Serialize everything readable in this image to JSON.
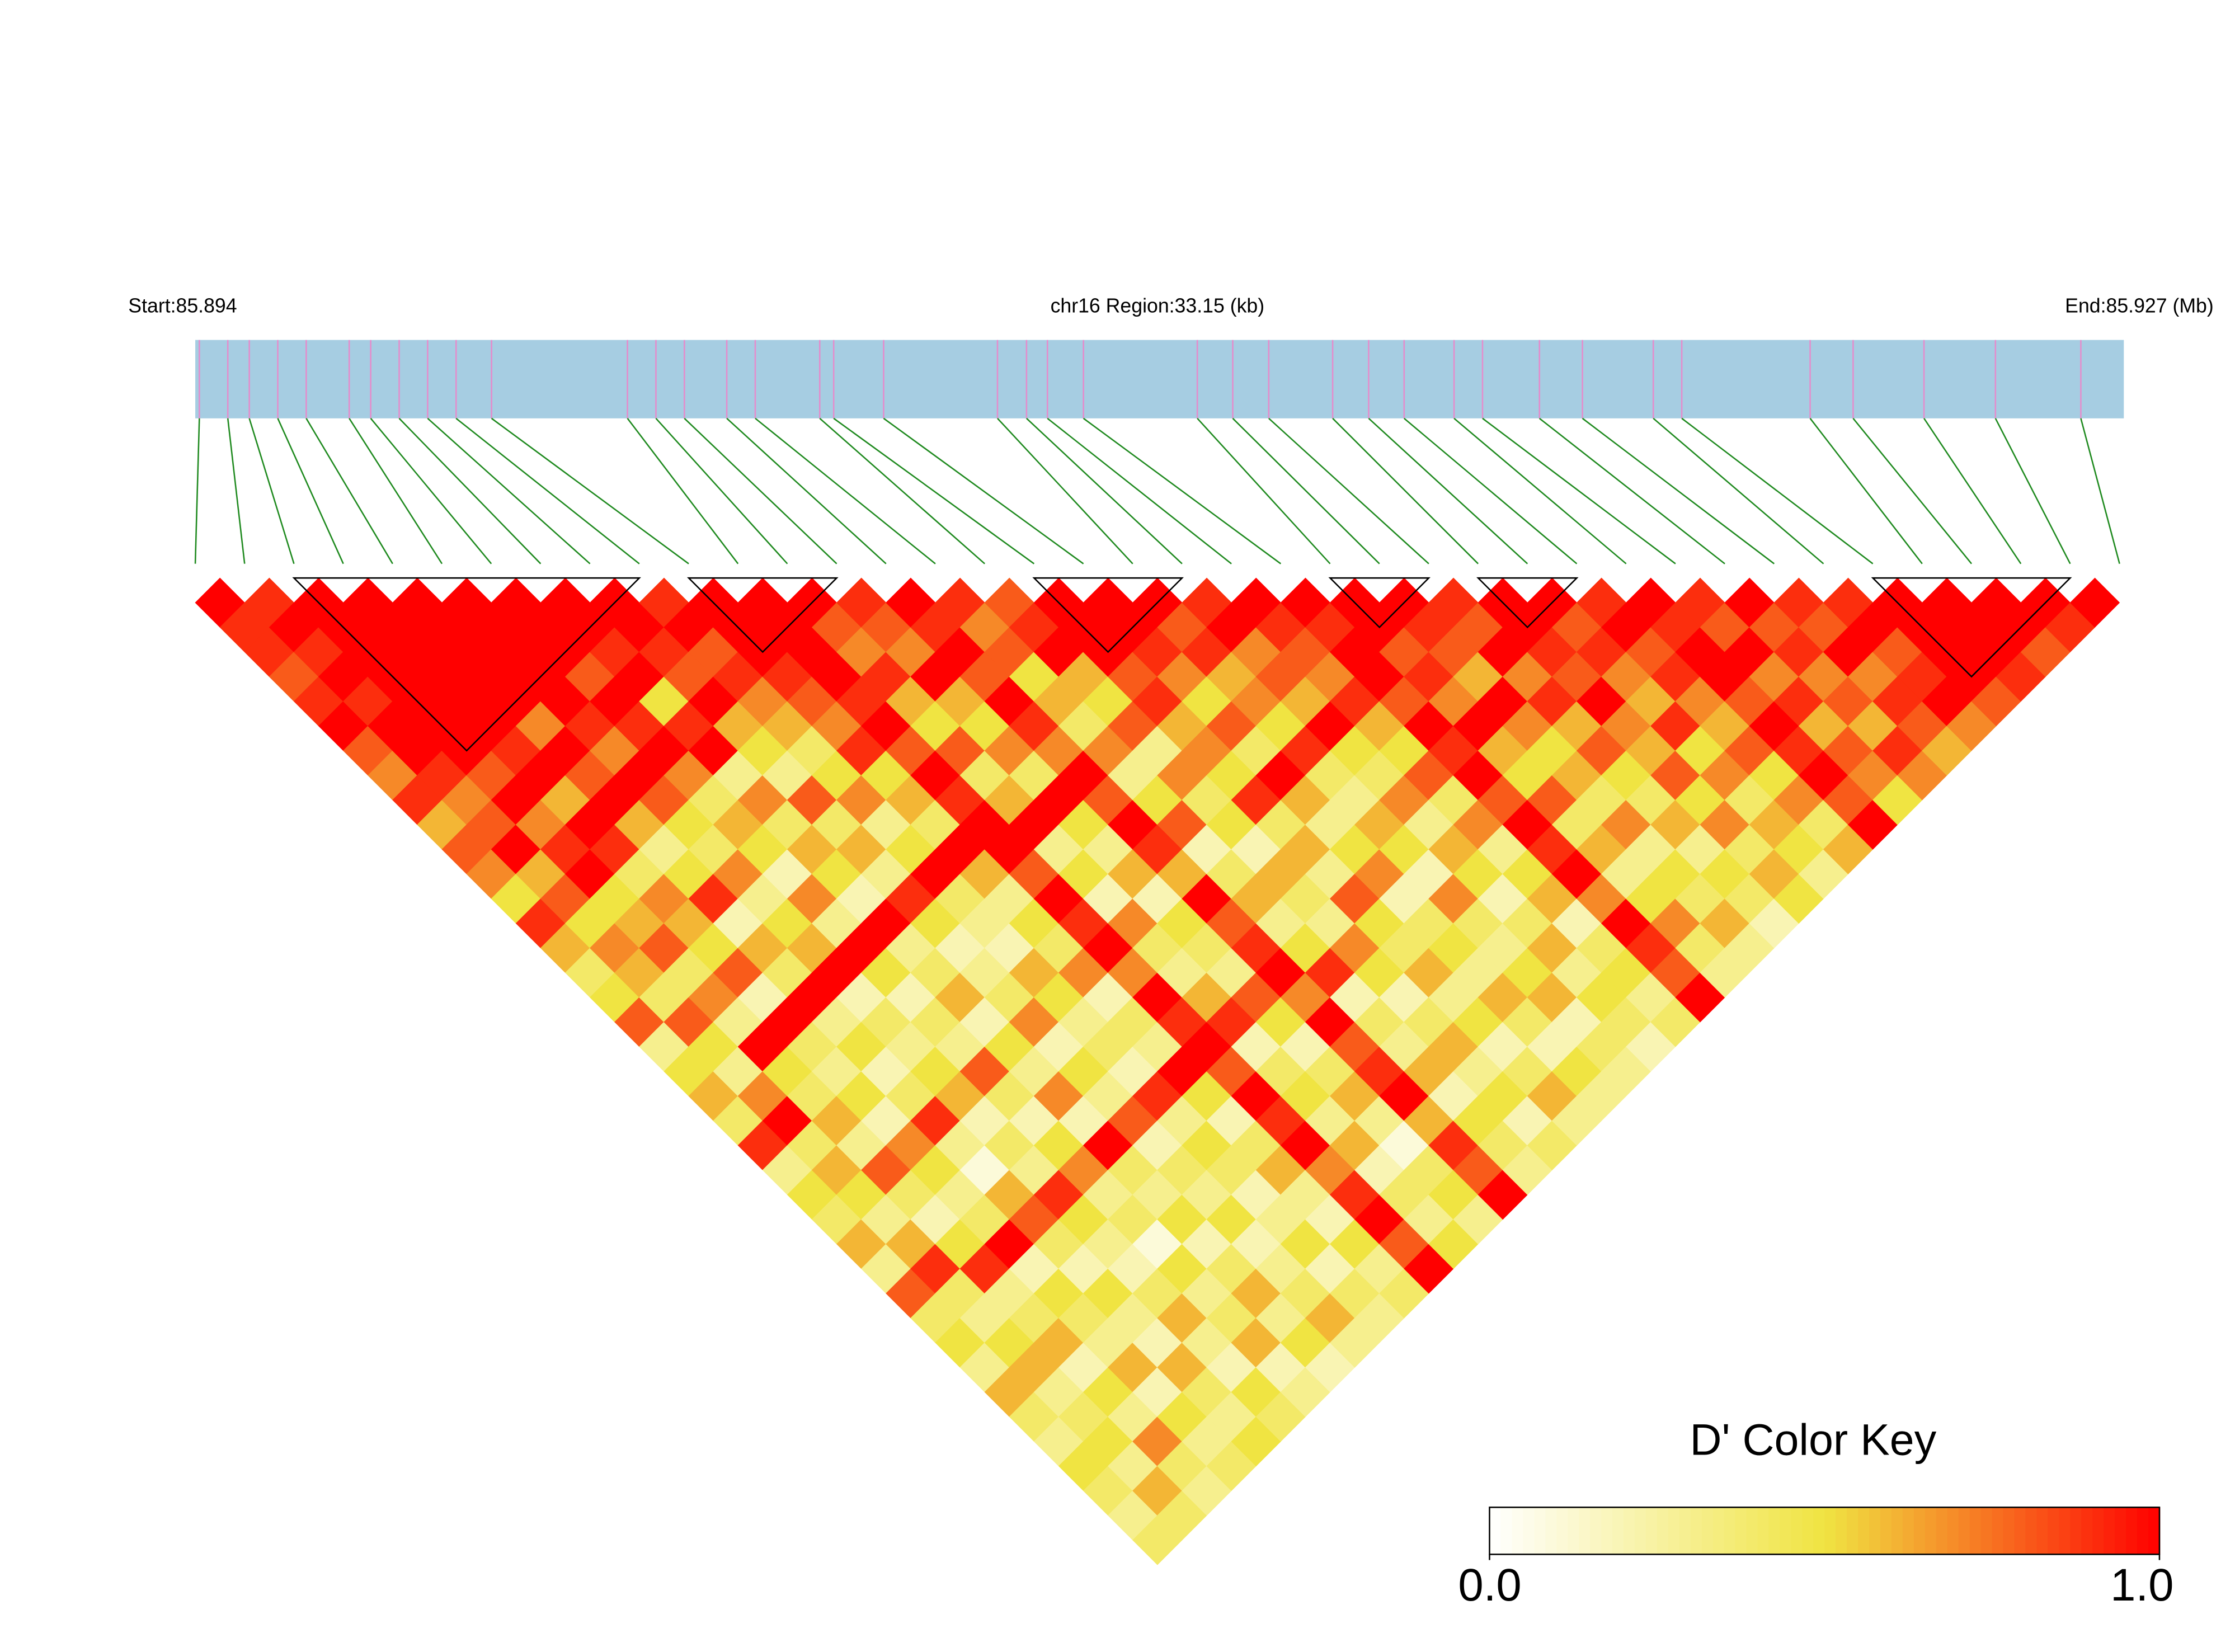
{
  "chart_data": {
    "type": "ld_heatmap",
    "title": "chr16 Region:33.15 (kb)",
    "start_label": "Start:85.894",
    "end_label": "End:85.927 (Mb)",
    "xlim": [
      85.894,
      85.9272
    ],
    "snps": [
      85.89407,
      85.89456,
      85.89493,
      85.89542,
      85.89591,
      85.89665,
      85.89702,
      85.89751,
      85.898,
      85.89849,
      85.8991,
      85.90144,
      85.90193,
      85.90242,
      85.90315,
      85.90364,
      85.90475,
      85.90499,
      85.90585,
      85.90781,
      85.90831,
      85.90867,
      85.90929,
      85.91125,
      85.91186,
      85.91248,
      85.91358,
      85.9142,
      85.91481,
      85.91567,
      85.91616,
      85.91714,
      85.91788,
      85.9191,
      85.91959,
      85.9218,
      85.92254,
      85.92376,
      85.92499,
      85.92646
    ],
    "bar_color": "#a6cde2",
    "marker_color": "#e58ccc",
    "link_color": "#1f8a1f",
    "block_color": "#000000",
    "blocks": [
      [
        2,
        9
      ],
      [
        10,
        13
      ],
      [
        17,
        20
      ],
      [
        23,
        25
      ],
      [
        26,
        28
      ],
      [
        34,
        38
      ]
    ],
    "values": [
      [
        1,
        0.9,
        0.9,
        0.8,
        0.9,
        1,
        0.8,
        0.7,
        0.9,
        0.6,
        0.8,
        0.7,
        0.5,
        0.9,
        0.6,
        0.4,
        0.5,
        0.8,
        0.3,
        0.5,
        0.6,
        0.4,
        0.9,
        0.3,
        0.5,
        0.4,
        0.6,
        0.3,
        0.8,
        0.4,
        0.5,
        0.3,
        0.6,
        0.4,
        0.3,
        0.5,
        0.4,
        0.3,
        0.4
      ],
      [
        0.9,
        1,
        0.9,
        1,
        0.9,
        1,
        1,
        0.9,
        0.7,
        0.8,
        1,
        0.6,
        0.8,
        0.5,
        0.7,
        0.6,
        0.4,
        0.8,
        0.5,
        0.3,
        0.7,
        1,
        0.4,
        0.6,
        0.5,
        0.3,
        0.6,
        0.9,
        0.4,
        0.3,
        0.5,
        0.6,
        0.3,
        0.4,
        0.5,
        0.3,
        0.6,
        0.4
      ],
      [
        1,
        1,
        1,
        1,
        1,
        1,
        1,
        0.8,
        1,
        0.7,
        0.9,
        1,
        0.5,
        0.6,
        0.8,
        0.4,
        0.7,
        0.3,
        1,
        0.5,
        0.4,
        0.6,
        0.3,
        0.8,
        0.4,
        0.2,
        0.5,
        0.9,
        0.3,
        0.4,
        0.6,
        0.2,
        0.5,
        0.3,
        0.7,
        0.4,
        0.3
      ],
      [
        1,
        1,
        1,
        1,
        1,
        1,
        0.9,
        1,
        0.6,
        1,
        0.9,
        0.4,
        0.7,
        0.6,
        0.5,
        0.8,
        0.2,
        1,
        0.4,
        0.3,
        0.5,
        0.2,
        0.7,
        0.5,
        0.3,
        0.4,
        1,
        0.2,
        0.5,
        0.4,
        0.3,
        0.6,
        0.2,
        0.5,
        0.3,
        0.4
      ],
      [
        1,
        1,
        1,
        1,
        1,
        0.7,
        1,
        0.8,
        1,
        0.6,
        0.3,
        0.5,
        0.9,
        0.2,
        0.6,
        0.4,
        1,
        0.3,
        0.5,
        0.2,
        0.4,
        0.9,
        0.3,
        0.1,
        0.6,
        0.8,
        0.4,
        0.2,
        0.5,
        0.3,
        0.2,
        0.6,
        0.4,
        0.3,
        0.5
      ],
      [
        1,
        1,
        1,
        1,
        1,
        0.9,
        0.7,
        1,
        0.8,
        0.5,
        0.4,
        0.7,
        0.3,
        0.5,
        0.6,
        1,
        0.2,
        0.4,
        0.3,
        0.5,
        0.6,
        0.2,
        0.4,
        0.3,
        0.9,
        0.5,
        0.3,
        0.2,
        0.4,
        0.6,
        0.3,
        0.2,
        0.5,
        0.4
      ],
      [
        1,
        1,
        1,
        0.8,
        1,
        0.9,
        1,
        0.7,
        0.4,
        0.6,
        0.5,
        0.2,
        0.7,
        0.3,
        1,
        0.5,
        0.2,
        0.4,
        0.3,
        0.8,
        0.4,
        0.2,
        0.5,
        0.7,
        0.3,
        0.4,
        0.1,
        0.5,
        0.3,
        0.4,
        0.6,
        0.2,
        0.3
      ],
      [
        1,
        1,
        0.9,
        1,
        0.5,
        0.9,
        1,
        0.3,
        0.7,
        0.4,
        0.6,
        0.5,
        0.2,
        1,
        0.3,
        0.4,
        0.6,
        0.2,
        0.5,
        0.3,
        0.7,
        0.2,
        1,
        0.4,
        0.3,
        0.5,
        0.2,
        0.4,
        0.6,
        0.3,
        0.5,
        0.2
      ],
      [
        1,
        1,
        0.9,
        0.8,
        1,
        0.6,
        0.5,
        0.3,
        0.8,
        0.4,
        0.6,
        0.3,
        0.9,
        0.5,
        0.2,
        0.3,
        0.4,
        0.7,
        0.2,
        0.5,
        0.3,
        0.8,
        0.2,
        0.4,
        0.3,
        0.5,
        0.2,
        0.3,
        0.4,
        0.6,
        0.3
      ],
      [
        0.9,
        1,
        0.8,
        0.9,
        0.7,
        0.6,
        0.4,
        0.5,
        0.7,
        0.3,
        0.5,
        1,
        0.4,
        0.3,
        0.2,
        0.6,
        0.5,
        0.3,
        0.4,
        0.2,
        0.9,
        0.3,
        0.5,
        0.4,
        0.2,
        0.3,
        0.5,
        0.2,
        0.4,
        0.3
      ],
      [
        1,
        1,
        1,
        0.9,
        0.8,
        0.7,
        0.9,
        0.5,
        0.6,
        0.4,
        1,
        0.6,
        0.3,
        0.5,
        0.4,
        0.7,
        0.2,
        0.4,
        0.3,
        1,
        0.5,
        0.2,
        0.4,
        0.6,
        0.3,
        0.2,
        0.5,
        0.3,
        0.4
      ],
      [
        1,
        1,
        1,
        1,
        0.9,
        1,
        0.8,
        1,
        0.9,
        1,
        1,
        0.8,
        1,
        0.9,
        1,
        0.7,
        1,
        0.9,
        1,
        0.8,
        1,
        0.9,
        1,
        0.7,
        0.9,
        1,
        0.8,
        1
      ],
      [
        1,
        0.8,
        0.7,
        0.9,
        0.6,
        0.5,
        0.8,
        0.4,
        0.6,
        1,
        0.3,
        0.5,
        0.2,
        0.7,
        0.4,
        0.3,
        0.6,
        0.9,
        0.2,
        0.4,
        0.5,
        0.3,
        0.6,
        0.2,
        0.4,
        0.3,
        0.5
      ],
      [
        0.9,
        0.8,
        0.7,
        1,
        0.6,
        0.5,
        0.7,
        0.4,
        1,
        0.5,
        0.3,
        0.6,
        0.2,
        0.5,
        0.4,
        0.3,
        0.8,
        0.5,
        0.2,
        0.4,
        0.6,
        0.3,
        0.1,
        0.4,
        0.5,
        0.3
      ],
      [
        1,
        0.9,
        1,
        0.8,
        1,
        0.9,
        0.7,
        1,
        0.8,
        1,
        0.9,
        0.6,
        1,
        0.8,
        0.9,
        1,
        0.7,
        1,
        0.8,
        0.9,
        1,
        0.6,
        0.9,
        0.8,
        1
      ],
      [
        0.9,
        0.7,
        0.8,
        0.5,
        0.6,
        0.4,
        0.7,
        0.3,
        0.5,
        0.8,
        0.2,
        0.4,
        0.6,
        0.3,
        0.5,
        0.9,
        0.2,
        0.4,
        0.3,
        0.6,
        0.2,
        0.5,
        0.4,
        0.3
      ],
      [
        0.8,
        0.9,
        1,
        0.6,
        0.5,
        0.8,
        0.3,
        0.7,
        0.4,
        0.5,
        0.2,
        0.6,
        0.4,
        0.3,
        0.7,
        0.5,
        0.2,
        0.4,
        0.6,
        0.3,
        0.5,
        0.2,
        0.4
      ],
      [
        1,
        1,
        1,
        0.8,
        0.9,
        0.6,
        0.7,
        0.5,
        0.9,
        0.4,
        0.6,
        0.3,
        0.8,
        0.5,
        0.4,
        0.6,
        0.3,
        0.5,
        0.2,
        0.4,
        0.6,
        0.3
      ],
      [
        1,
        1,
        0.9,
        0.7,
        0.5,
        0.8,
        0.4,
        1,
        0.6,
        0.3,
        0.5,
        0.7,
        0.2,
        0.4,
        0.5,
        0.3,
        0.6,
        0.4,
        0.2,
        0.5,
        0.3
      ],
      [
        1,
        0.8,
        0.9,
        0.6,
        0.7,
        0.5,
        0.9,
        0.4,
        0.3,
        0.6,
        0.5,
        0.2,
        0.7,
        0.4,
        0.3,
        0.5,
        0.6,
        0.2,
        0.4,
        0.3
      ],
      [
        0.9,
        1,
        0.7,
        0.8,
        0.6,
        1,
        0.5,
        0.4,
        0.7,
        0.3,
        0.6,
        0.5,
        0.2,
        0.4,
        0.6,
        0.3,
        0.5,
        0.4,
        0.2
      ],
      [
        1,
        0.9,
        0.8,
        0.7,
        0.9,
        0.6,
        0.5,
        0.8,
        0.4,
        0.7,
        0.3,
        0.5,
        0.6,
        0.2,
        0.4,
        0.5,
        0.3,
        0.4
      ],
      [
        1,
        0.9,
        1,
        1,
        0.8,
        1,
        0.9,
        1,
        0.8,
        1,
        0.9,
        1,
        0.7,
        1,
        0.9,
        0.8,
        1
      ],
      [
        1,
        1,
        0.8,
        0.9,
        0.7,
        1,
        0.6,
        0.5,
        0.8,
        0.4,
        0.6,
        0.3,
        0.5,
        0.7,
        0.4,
        0.3
      ],
      [
        1,
        0.9,
        0.8,
        0.6,
        1,
        0.7,
        0.5,
        0.6,
        0.4,
        0.7,
        0.3,
        0.5,
        0.4,
        0.6,
        0.3
      ],
      [
        0.9,
        0.8,
        1,
        0.7,
        0.9,
        0.6,
        0.8,
        0.5,
        0.4,
        0.6,
        0.3,
        0.5,
        0.4,
        0.2
      ],
      [
        1,
        1,
        0.9,
        0.8,
        1,
        0.7,
        0.6,
        0.8,
        0.5,
        0.7,
        0.4,
        0.6,
        0.5
      ],
      [
        1,
        0.8,
        0.9,
        0.7,
        0.6,
        0.9,
        0.5,
        0.7,
        0.4,
        0.6,
        0.5,
        0.3
      ],
      [
        0.9,
        1,
        0.8,
        0.9,
        0.7,
        0.6,
        0.8,
        0.5,
        0.7,
        0.4,
        0.6
      ],
      [
        1,
        0.9,
        1,
        1,
        0.8,
        1,
        0.9,
        1,
        0.8,
        1
      ],
      [
        0.9,
        0.8,
        1,
        0.7,
        0.9,
        0.6,
        0.8,
        0.7,
        0.5
      ],
      [
        1,
        0.8,
        0.9,
        0.7,
        0.8,
        0.6,
        0.9,
        0.7
      ],
      [
        0.9,
        0.8,
        1,
        0.7,
        0.9,
        0.8,
        0.6
      ],
      [
        0.9,
        1,
        0.8,
        0.9,
        1,
        0.7
      ],
      [
        1,
        1,
        1,
        1,
        0.8
      ],
      [
        1,
        1,
        1,
        0.9
      ],
      [
        1,
        1,
        0.8
      ],
      [
        1,
        0.9
      ],
      [
        1
      ]
    ],
    "colormap": [
      "#ffffff",
      "#f0e442",
      "#ff0000"
    ],
    "legend": {
      "title": "D' Color Key",
      "lim": [
        0,
        1
      ],
      "ticks": [
        {
          "value": 0,
          "label": "0.0"
        },
        {
          "value": 1,
          "label": "1.0"
        }
      ]
    }
  }
}
